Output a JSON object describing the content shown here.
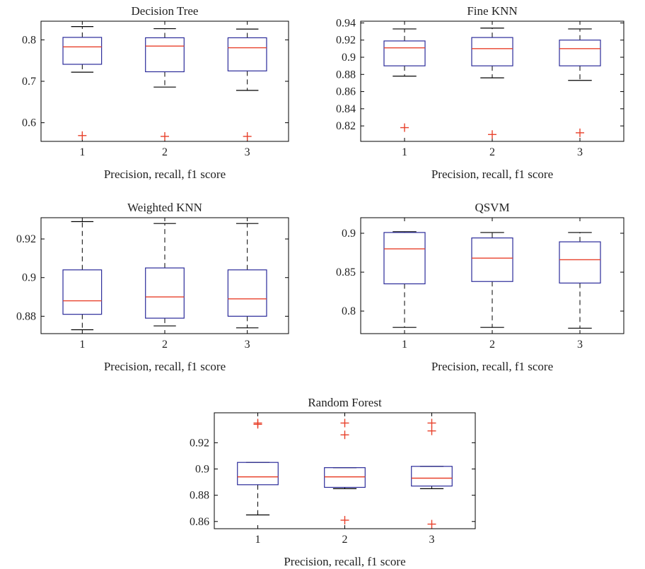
{
  "chart_data": [
    {
      "type": "box",
      "title": "Decision Tree",
      "xlabel": "Precision, recall, f1 score",
      "ylabel": "",
      "categories": [
        "1",
        "2",
        "3"
      ],
      "ylim": [
        0.555,
        0.845
      ],
      "yticks": [
        0.6,
        0.7,
        0.8
      ],
      "ytick_labels": [
        "0.6",
        "0.7",
        "0.8"
      ],
      "boxes": [
        {
          "lower_whisker": 0.722,
          "q1": 0.741,
          "median": 0.783,
          "q3": 0.806,
          "upper_whisker": 0.832,
          "outliers": [
            0.569
          ]
        },
        {
          "lower_whisker": 0.686,
          "q1": 0.723,
          "median": 0.785,
          "q3": 0.805,
          "upper_whisker": 0.827,
          "outliers": [
            0.567
          ]
        },
        {
          "lower_whisker": 0.678,
          "q1": 0.725,
          "median": 0.781,
          "q3": 0.805,
          "upper_whisker": 0.826,
          "outliers": [
            0.567
          ]
        }
      ]
    },
    {
      "type": "box",
      "title": "Fine KNN",
      "xlabel": "Precision, recall, f1 score",
      "ylabel": "",
      "categories": [
        "1",
        "2",
        "3"
      ],
      "ylim": [
        0.802,
        0.942
      ],
      "yticks": [
        0.82,
        0.84,
        0.86,
        0.88,
        0.9,
        0.92,
        0.94
      ],
      "ytick_labels": [
        "0.82",
        "0.84",
        "0.86",
        "0.88",
        "0.9",
        "0.92",
        "0.94"
      ],
      "boxes": [
        {
          "lower_whisker": 0.878,
          "q1": 0.89,
          "median": 0.911,
          "q3": 0.919,
          "upper_whisker": 0.933,
          "outliers": [
            0.818
          ]
        },
        {
          "lower_whisker": 0.876,
          "q1": 0.89,
          "median": 0.91,
          "q3": 0.923,
          "upper_whisker": 0.934,
          "outliers": [
            0.81
          ]
        },
        {
          "lower_whisker": 0.873,
          "q1": 0.89,
          "median": 0.91,
          "q3": 0.92,
          "upper_whisker": 0.933,
          "outliers": [
            0.812
          ]
        }
      ]
    },
    {
      "type": "box",
      "title": "Weighted KNN",
      "xlabel": "Precision, recall, f1 score",
      "ylabel": "",
      "categories": [
        "1",
        "2",
        "3"
      ],
      "ylim": [
        0.871,
        0.931
      ],
      "yticks": [
        0.88,
        0.9,
        0.92
      ],
      "ytick_labels": [
        "0.88",
        "0.9",
        "0.92"
      ],
      "boxes": [
        {
          "lower_whisker": 0.873,
          "q1": 0.881,
          "median": 0.888,
          "q3": 0.904,
          "upper_whisker": 0.929,
          "outliers": []
        },
        {
          "lower_whisker": 0.875,
          "q1": 0.879,
          "median": 0.89,
          "q3": 0.905,
          "upper_whisker": 0.928,
          "outliers": []
        },
        {
          "lower_whisker": 0.874,
          "q1": 0.88,
          "median": 0.889,
          "q3": 0.904,
          "upper_whisker": 0.928,
          "outliers": []
        }
      ]
    },
    {
      "type": "box",
      "title": "QSVM",
      "xlabel": "Precision, recall, f1 score",
      "ylabel": "",
      "categories": [
        "1",
        "2",
        "3"
      ],
      "ylim": [
        0.771,
        0.92
      ],
      "yticks": [
        0.8,
        0.85,
        0.9
      ],
      "ytick_labels": [
        "0.8",
        "0.85",
        "0.9"
      ],
      "boxes": [
        {
          "lower_whisker": 0.779,
          "q1": 0.835,
          "median": 0.88,
          "q3": 0.901,
          "upper_whisker": 0.902,
          "outliers": []
        },
        {
          "lower_whisker": 0.779,
          "q1": 0.838,
          "median": 0.868,
          "q3": 0.894,
          "upper_whisker": 0.901,
          "outliers": []
        },
        {
          "lower_whisker": 0.778,
          "q1": 0.836,
          "median": 0.866,
          "q3": 0.889,
          "upper_whisker": 0.901,
          "outliers": []
        }
      ]
    },
    {
      "type": "box",
      "title": "Random Forest",
      "xlabel": "Precision, recall, f1 score",
      "ylabel": "",
      "categories": [
        "1",
        "2",
        "3"
      ],
      "ylim": [
        0.8545,
        0.9428
      ],
      "yticks": [
        0.86,
        0.88,
        0.9,
        0.92
      ],
      "ytick_labels": [
        "0.86",
        "0.88",
        "0.9",
        "0.92"
      ],
      "boxes": [
        {
          "lower_whisker": 0.865,
          "q1": 0.888,
          "median": 0.894,
          "q3": 0.905,
          "upper_whisker": 0.905,
          "outliers": [
            0.935,
            0.934
          ]
        },
        {
          "lower_whisker": 0.885,
          "q1": 0.886,
          "median": 0.894,
          "q3": 0.901,
          "upper_whisker": 0.901,
          "outliers": [
            0.935,
            0.926,
            0.861
          ]
        },
        {
          "lower_whisker": 0.885,
          "q1": 0.887,
          "median": 0.893,
          "q3": 0.902,
          "upper_whisker": 0.902,
          "outliers": [
            0.935,
            0.929,
            0.858
          ]
        }
      ]
    }
  ],
  "colors": {
    "box": "#2b2b9a",
    "median": "#e8412b",
    "outlier": "#e8412b",
    "whisker": "#000000"
  }
}
